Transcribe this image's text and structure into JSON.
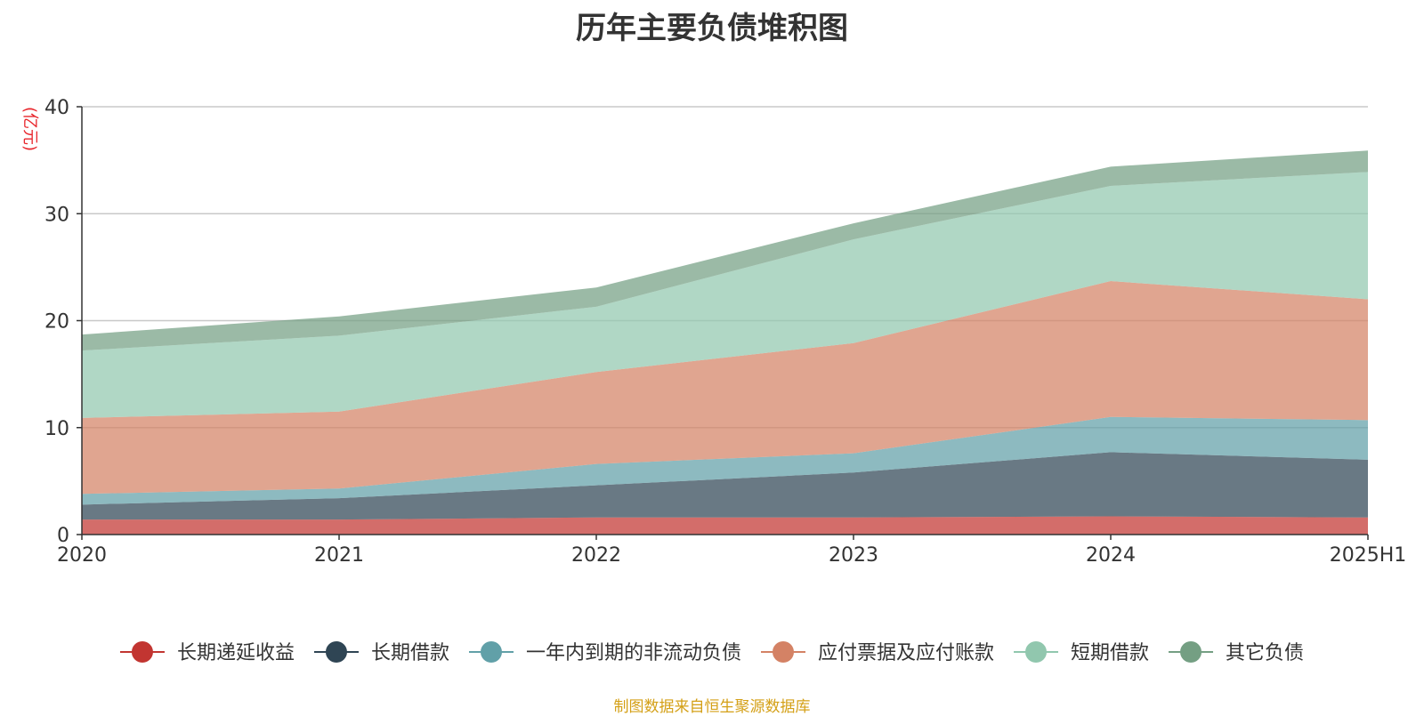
{
  "chart_data": {
    "type": "area",
    "stacked": true,
    "title": "历年主要负债堆积图",
    "unit_label": "(亿元)",
    "x": [
      "2020",
      "2021",
      "2022",
      "2023",
      "2024",
      "2025H1"
    ],
    "ylim": [
      0,
      40
    ],
    "yticks": [
      0,
      10,
      20,
      30,
      40
    ],
    "grid": true,
    "legend_position": "bottom",
    "series": [
      {
        "name": "长期递延收益",
        "color": "#c23531",
        "values": [
          1.4,
          1.4,
          1.6,
          1.6,
          1.7,
          1.6
        ]
      },
      {
        "name": "长期借款",
        "color": "#2f4554",
        "values": [
          1.4,
          2.0,
          3.0,
          4.2,
          6.0,
          5.4
        ]
      },
      {
        "name": "一年内到期的非流动负债",
        "color": "#61a0a8",
        "values": [
          1.0,
          0.9,
          2.0,
          1.8,
          3.3,
          3.7
        ]
      },
      {
        "name": "应付票据及应付账款",
        "color": "#d48265",
        "values": [
          7.1,
          7.2,
          8.6,
          10.3,
          12.7,
          11.3
        ]
      },
      {
        "name": "短期借款",
        "color": "#91c7ae",
        "values": [
          6.3,
          7.1,
          6.1,
          9.7,
          8.9,
          11.9
        ]
      },
      {
        "name": "其它负债",
        "color": "#749f83",
        "values": [
          1.5,
          1.8,
          1.8,
          1.5,
          1.8,
          2.0
        ]
      }
    ]
  },
  "source_note": "制图数据来自恒生聚源数据库"
}
